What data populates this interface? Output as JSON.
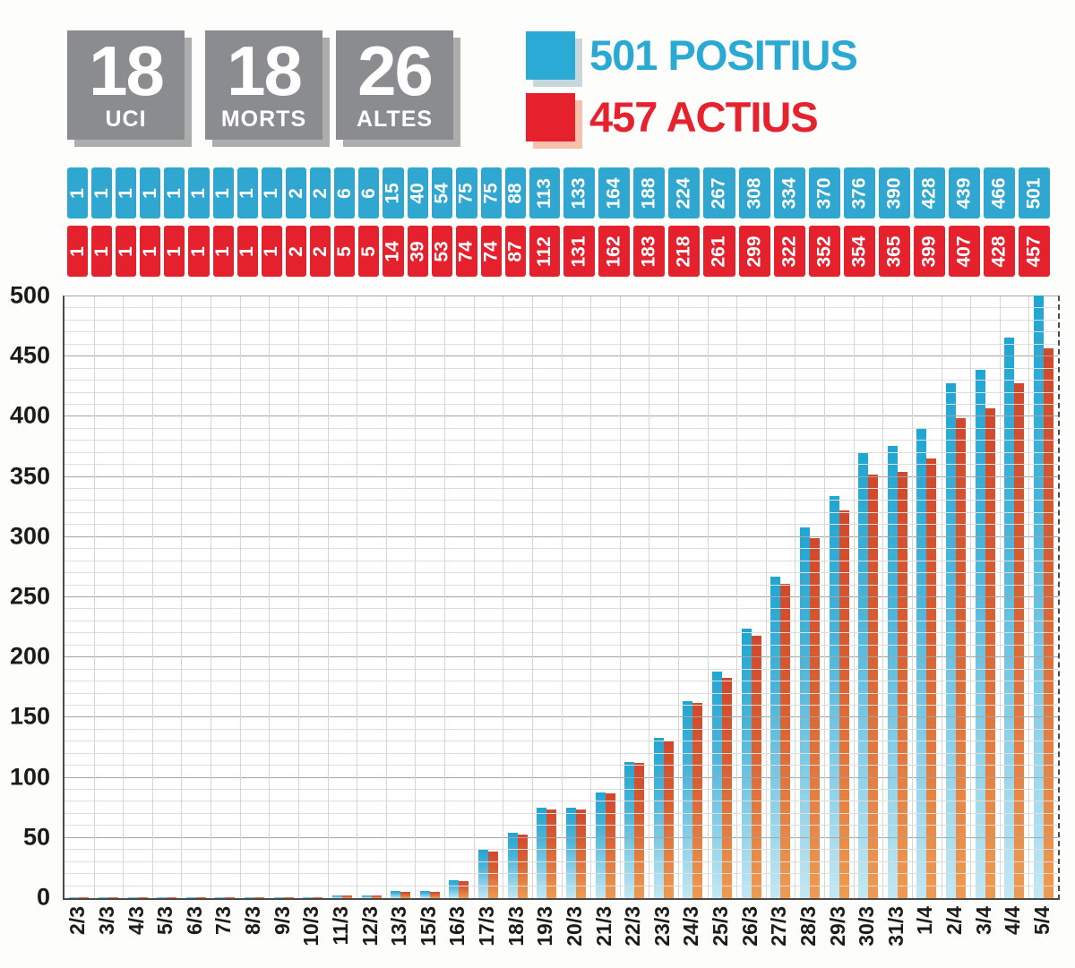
{
  "stats": [
    {
      "value": "18",
      "label": "UCI"
    },
    {
      "value": "18",
      "label": "MORTS"
    },
    {
      "value": "26",
      "label": "ALTES"
    }
  ],
  "stat_box_color": "#8a8c8f",
  "legend": [
    {
      "label": "501 POSITIUS",
      "color": "#2ba9d5",
      "swatch": "#2caad6",
      "shadow": "#c8d7dc"
    },
    {
      "label": "457 ACTIUS",
      "color": "#e7222f",
      "swatch": "#e6212e",
      "shadow": "#f7c0ab"
    }
  ],
  "value_rows": {
    "positius_color": "#2fa7d0",
    "actius_color": "#e6212e"
  },
  "chart_data": {
    "type": "bar",
    "title": "",
    "xlabel": "",
    "ylabel": "",
    "categories": [
      "2/3",
      "3/3",
      "4/3",
      "5/3",
      "6/3",
      "7/3",
      "8/3",
      "9/3",
      "10/3",
      "11/3",
      "12/3",
      "13/3",
      "15/3",
      "16/3",
      "17/3",
      "18/3",
      "19/3",
      "20/3",
      "21/3",
      "22/3",
      "23/3",
      "24/3",
      "25/3",
      "26/3",
      "27/3",
      "28/3",
      "29/3",
      "30/3",
      "31/3",
      "1/4",
      "2/4",
      "3/4",
      "4/4",
      "5/4"
    ],
    "series": [
      {
        "name": "POSITIUS",
        "color_top": "#1fa6d3",
        "color_bottom": "#c2e8f4",
        "values": [
          1,
          1,
          1,
          1,
          1,
          1,
          1,
          1,
          1,
          2,
          2,
          6,
          6,
          15,
          40,
          54,
          75,
          75,
          88,
          113,
          133,
          164,
          188,
          224,
          267,
          308,
          334,
          370,
          376,
          390,
          428,
          439,
          466,
          501
        ]
      },
      {
        "name": "ACTIUS",
        "color_top": "#d3472b",
        "color_bottom": "#ef9b50",
        "values": [
          1,
          1,
          1,
          1,
          1,
          1,
          1,
          1,
          1,
          2,
          2,
          5,
          5,
          14,
          39,
          53,
          74,
          74,
          87,
          112,
          131,
          162,
          183,
          218,
          261,
          299,
          322,
          352,
          354,
          365,
          399,
          407,
          428,
          457
        ]
      }
    ],
    "ylim": [
      0,
      500
    ],
    "yticks": [
      0,
      50,
      100,
      150,
      200,
      250,
      300,
      350,
      400,
      450,
      500
    ],
    "minor_step": 10,
    "grid": true,
    "legend_position": "top"
  }
}
